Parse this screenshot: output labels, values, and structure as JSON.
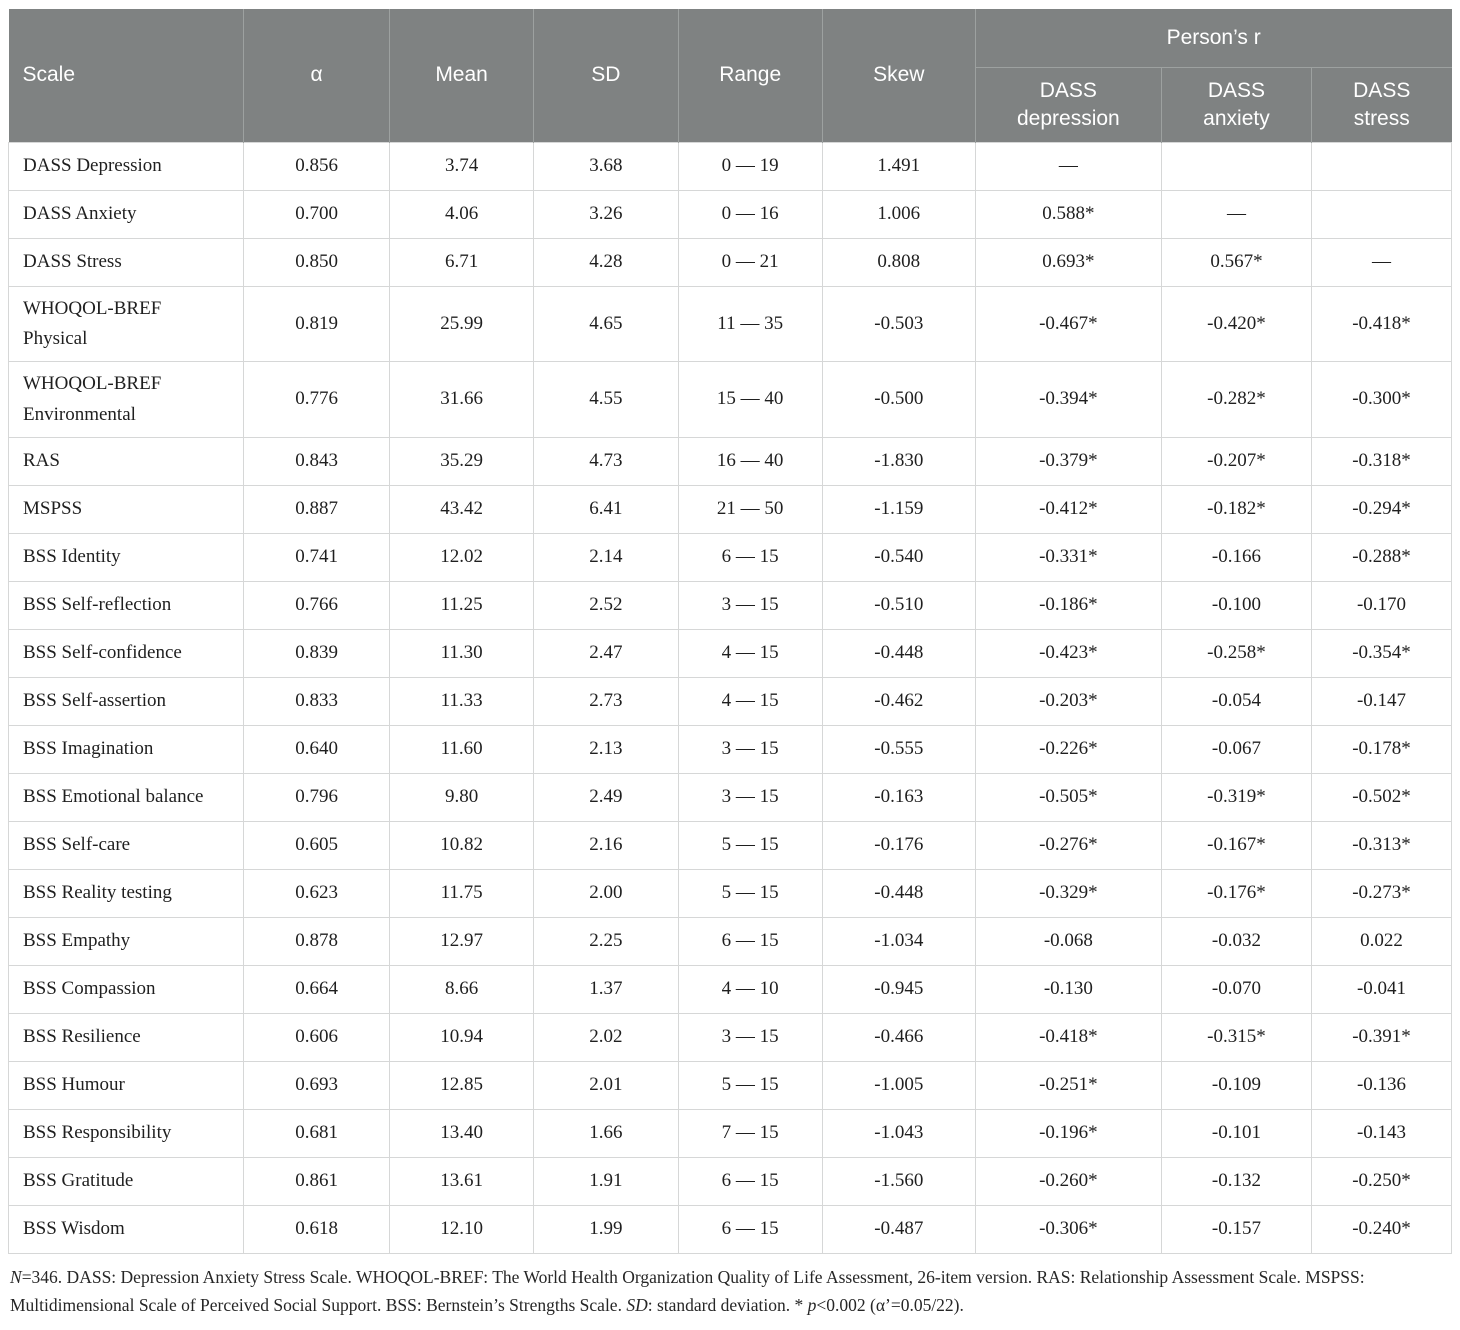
{
  "table": {
    "headers": {
      "scale": "Scale",
      "alpha": "α",
      "mean": "Mean",
      "sd": "SD",
      "range": "Range",
      "skew": "Skew",
      "pearsons_r_group": "Person’s r",
      "dass_depression": "DASS\ndepression",
      "dass_anxiety": "DASS\nanxiety",
      "dass_stress": "DASS\nstress"
    },
    "columns_order": [
      "scale",
      "alpha",
      "mean",
      "sd",
      "range",
      "skew",
      "r_dep",
      "r_anx",
      "r_str"
    ],
    "rows": [
      {
        "scale": "DASS Depression",
        "alpha": "0.856",
        "mean": "3.74",
        "sd": "3.68",
        "range": "0 — 19",
        "skew": "1.491",
        "r_dep": "—",
        "r_anx": "",
        "r_str": ""
      },
      {
        "scale": "DASS Anxiety",
        "alpha": "0.700",
        "mean": "4.06",
        "sd": "3.26",
        "range": "0 — 16",
        "skew": "1.006",
        "r_dep": "0.588*",
        "r_anx": "—",
        "r_str": ""
      },
      {
        "scale": "DASS Stress",
        "alpha": "0.850",
        "mean": "6.71",
        "sd": "4.28",
        "range": "0 — 21",
        "skew": "0.808",
        "r_dep": "0.693*",
        "r_anx": "0.567*",
        "r_str": "—"
      },
      {
        "scale": "WHOQOL-BREF\nPhysical",
        "alpha": "0.819",
        "mean": "25.99",
        "sd": "4.65",
        "range": "11 — 35",
        "skew": "-0.503",
        "r_dep": "-0.467*",
        "r_anx": "-0.420*",
        "r_str": "-0.418*"
      },
      {
        "scale": "WHOQOL-BREF\nEnvironmental",
        "alpha": "0.776",
        "mean": "31.66",
        "sd": "4.55",
        "range": "15 — 40",
        "skew": "-0.500",
        "r_dep": "-0.394*",
        "r_anx": "-0.282*",
        "r_str": "-0.300*"
      },
      {
        "scale": "RAS",
        "alpha": "0.843",
        "mean": "35.29",
        "sd": "4.73",
        "range": "16 — 40",
        "skew": "-1.830",
        "r_dep": "-0.379*",
        "r_anx": "-0.207*",
        "r_str": "-0.318*"
      },
      {
        "scale": "MSPSS",
        "alpha": "0.887",
        "mean": "43.42",
        "sd": "6.41",
        "range": "21 — 50",
        "skew": "-1.159",
        "r_dep": "-0.412*",
        "r_anx": "-0.182*",
        "r_str": "-0.294*"
      },
      {
        "scale": "BSS Identity",
        "alpha": "0.741",
        "mean": "12.02",
        "sd": "2.14",
        "range": "6 — 15",
        "skew": "-0.540",
        "r_dep": "-0.331*",
        "r_anx": "-0.166",
        "r_str": "-0.288*"
      },
      {
        "scale": "BSS Self-reflection",
        "alpha": "0.766",
        "mean": "11.25",
        "sd": "2.52",
        "range": "3 — 15",
        "skew": "-0.510",
        "r_dep": "-0.186*",
        "r_anx": "-0.100",
        "r_str": "-0.170"
      },
      {
        "scale": "BSS Self-confidence",
        "alpha": "0.839",
        "mean": "11.30",
        "sd": "2.47",
        "range": "4 — 15",
        "skew": "-0.448",
        "r_dep": "-0.423*",
        "r_anx": "-0.258*",
        "r_str": "-0.354*"
      },
      {
        "scale": "BSS Self-assertion",
        "alpha": "0.833",
        "mean": "11.33",
        "sd": "2.73",
        "range": "4 — 15",
        "skew": "-0.462",
        "r_dep": "-0.203*",
        "r_anx": "-0.054",
        "r_str": "-0.147"
      },
      {
        "scale": "BSS Imagination",
        "alpha": "0.640",
        "mean": "11.60",
        "sd": "2.13",
        "range": "3 — 15",
        "skew": "-0.555",
        "r_dep": "-0.226*",
        "r_anx": "-0.067",
        "r_str": "-0.178*"
      },
      {
        "scale": "BSS Emotional balance",
        "alpha": "0.796",
        "mean": "9.80",
        "sd": "2.49",
        "range": "3 — 15",
        "skew": "-0.163",
        "r_dep": "-0.505*",
        "r_anx": "-0.319*",
        "r_str": "-0.502*"
      },
      {
        "scale": "BSS Self-care",
        "alpha": "0.605",
        "mean": "10.82",
        "sd": "2.16",
        "range": "5 — 15",
        "skew": "-0.176",
        "r_dep": "-0.276*",
        "r_anx": "-0.167*",
        "r_str": "-0.313*"
      },
      {
        "scale": "BSS Reality testing",
        "alpha": "0.623",
        "mean": "11.75",
        "sd": "2.00",
        "range": "5 — 15",
        "skew": "-0.448",
        "r_dep": "-0.329*",
        "r_anx": "-0.176*",
        "r_str": "-0.273*"
      },
      {
        "scale": "BSS Empathy",
        "alpha": "0.878",
        "mean": "12.97",
        "sd": "2.25",
        "range": "6 — 15",
        "skew": "-1.034",
        "r_dep": "-0.068",
        "r_anx": "-0.032",
        "r_str": "0.022"
      },
      {
        "scale": "BSS Compassion",
        "alpha": "0.664",
        "mean": "8.66",
        "sd": "1.37",
        "range": "4 — 10",
        "skew": "-0.945",
        "r_dep": "-0.130",
        "r_anx": "-0.070",
        "r_str": "-0.041"
      },
      {
        "scale": "BSS Resilience",
        "alpha": "0.606",
        "mean": "10.94",
        "sd": "2.02",
        "range": "3 — 15",
        "skew": "-0.466",
        "r_dep": "-0.418*",
        "r_anx": "-0.315*",
        "r_str": "-0.391*"
      },
      {
        "scale": "BSS Humour",
        "alpha": "0.693",
        "mean": "12.85",
        "sd": "2.01",
        "range": "5 — 15",
        "skew": "-1.005",
        "r_dep": "-0.251*",
        "r_anx": "-0.109",
        "r_str": "-0.136"
      },
      {
        "scale": "BSS Responsibility",
        "alpha": "0.681",
        "mean": "13.40",
        "sd": "1.66",
        "range": "7 — 15",
        "skew": "-1.043",
        "r_dep": "-0.196*",
        "r_anx": "-0.101",
        "r_str": "-0.143"
      },
      {
        "scale": "BSS Gratitude",
        "alpha": "0.861",
        "mean": "13.61",
        "sd": "1.91",
        "range": "6 — 15",
        "skew": "-1.560",
        "r_dep": "-0.260*",
        "r_anx": "-0.132",
        "r_str": "-0.250*"
      },
      {
        "scale": "BSS Wisdom",
        "alpha": "0.618",
        "mean": "12.10",
        "sd": "1.99",
        "range": "6 — 15",
        "skew": "-0.487",
        "r_dep": "-0.306*",
        "r_anx": "-0.157",
        "r_str": "-0.240*"
      }
    ]
  },
  "footnote": {
    "segments": [
      {
        "text": "N",
        "italic": true
      },
      {
        "text": "=346. DASS: Depression Anxiety Stress Scale. WHOQOL-BREF: The World Health Organization Quality of Life Assessment, 26-item version. RAS: Relationship Assessment Scale. MSPSS: Multidimensional Scale of Perceived Social Support. BSS: Bernstein’s Strengths Scale. ",
        "italic": false
      },
      {
        "text": "SD",
        "italic": true
      },
      {
        "text": ": standard deviation. * ",
        "italic": false
      },
      {
        "text": "p",
        "italic": true
      },
      {
        "text": "<0.002 (α’=0.05/22).",
        "italic": false
      }
    ]
  },
  "colors": {
    "header_bg": "#7f8282",
    "header_divider": "#9da1a0",
    "body_border": "#d6d7d7",
    "header_text": "#ffffff",
    "body_text": "#1f1f1f"
  }
}
